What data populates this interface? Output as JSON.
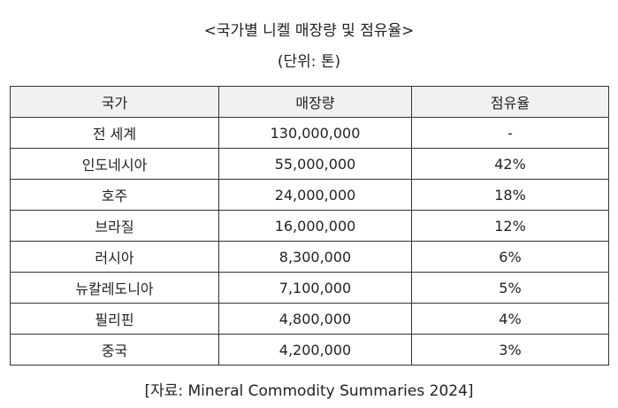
{
  "title": "<국가별 니켈 매장량 및 점유율>",
  "unit": "(단위: 톤)",
  "table": {
    "headers": [
      "국가",
      "매장량",
      "점유율"
    ],
    "rows": [
      [
        "전 세계",
        "130,000,000",
        "-"
      ],
      [
        "인도네시아",
        "55,000,000",
        "42%"
      ],
      [
        "호주",
        "24,000,000",
        "18%"
      ],
      [
        "브라질",
        "16,000,000",
        "12%"
      ],
      [
        "러시아",
        "8,300,000",
        "6%"
      ],
      [
        "뉴칼레도니아",
        "7,100,000",
        "5%"
      ],
      [
        "필리핀",
        "4,800,000",
        "4%"
      ],
      [
        "중국",
        "4,200,000",
        "3%"
      ]
    ]
  },
  "source": "[자료: Mineral Commodity Summaries 2024]"
}
